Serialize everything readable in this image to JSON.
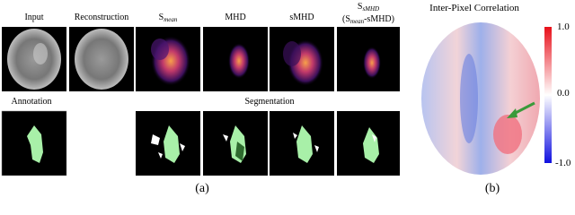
{
  "panel_a": {
    "labels": {
      "input": "Input",
      "reconstruction": "Reconstruction",
      "s_mean": {
        "base": "S",
        "sub": "mean"
      },
      "mhd": "MHD",
      "smhd": "sMHD",
      "s_smhd": {
        "base": "S",
        "sub": "sMHD"
      },
      "s_smhd_formula": {
        "open": "(S",
        "sub": "mean",
        "rest": "-sMHD)"
      }
    },
    "annotation": "Annotation",
    "segmentation": "Segmentation",
    "caption": "(a)"
  },
  "panel_b": {
    "title": "Inter-Pixel Correlation",
    "colorbar_ticks": [
      "1.0",
      "0.0",
      "-1.0"
    ],
    "caption": "(b)"
  }
}
